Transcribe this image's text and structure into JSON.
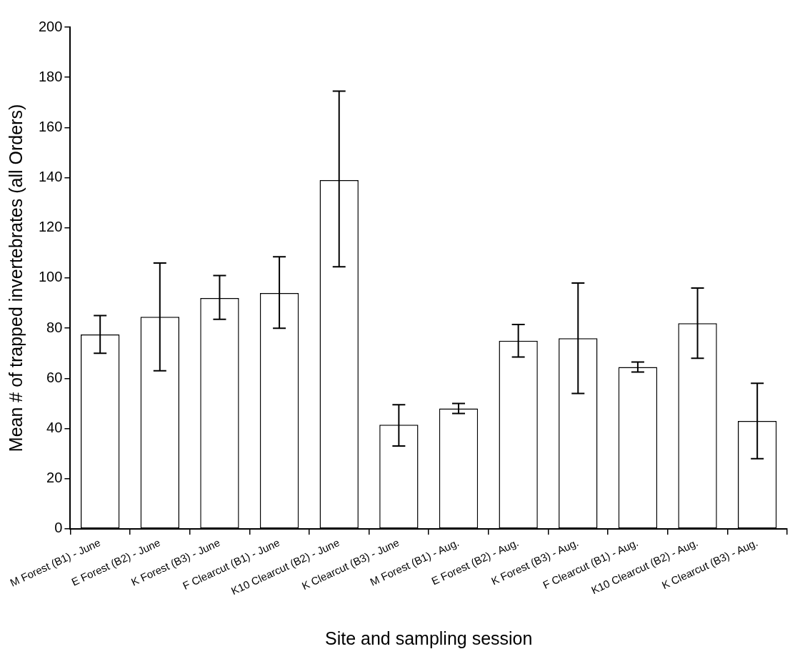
{
  "chart_data": {
    "type": "bar",
    "xlabel": "Site and sampling session",
    "ylabel": "Mean # of trapped invertebrates (all Orders)",
    "categories": [
      "M Forest (B1) - June",
      "E Forest (B2) - June",
      "K Forest (B3) - June",
      "F Clearcut (B1) - June",
      "K10 Clearcut (B2) - June",
      "K Clearcut (B3) - June",
      "M Forest (B1) - Aug.",
      "E Forest (B2) - Aug.",
      "K Forest (B3) - Aug.",
      "F Clearcut (B1) - Aug.",
      "K10 Clearcut (B2) - Aug.",
      "K Clearcut (B3) - Aug."
    ],
    "values": [
      77.5,
      84.5,
      92,
      94,
      139,
      41.5,
      48,
      75,
      76,
      64.5,
      82,
      43
    ],
    "errors": [
      [
        70,
        85
      ],
      [
        63,
        106
      ],
      [
        83.5,
        101
      ],
      [
        80,
        108.5
      ],
      [
        104.5,
        174.5
      ],
      [
        33,
        49.5
      ],
      [
        46,
        50
      ],
      [
        68.5,
        81.5
      ],
      [
        54,
        98
      ],
      [
        62.5,
        66.5
      ],
      [
        68,
        96
      ],
      [
        28,
        58
      ]
    ],
    "color": "#ffffff",
    "ylim": [
      0,
      200
    ],
    "yticks": [
      0,
      20,
      40,
      60,
      80,
      100,
      120,
      140,
      160,
      180,
      200
    ],
    "grid": false,
    "legend": false
  }
}
